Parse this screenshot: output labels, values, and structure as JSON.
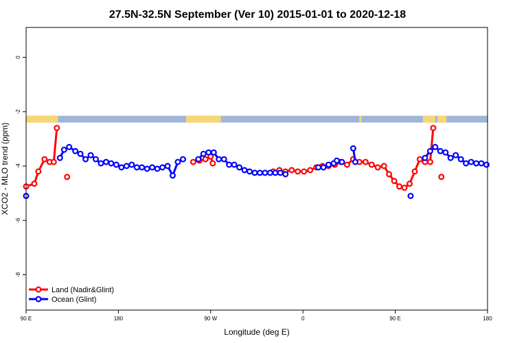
{
  "chart_data": {
    "type": "line",
    "title": "27.5N-32.5N September (Ver 10)   2015-01-01 to 2020-12-18",
    "xlabel": "Longitude (deg E)",
    "ylabel": "XCO2 - MLO trend (ppm)",
    "x_ticks": [
      {
        "value": 90,
        "label": "90 E"
      },
      {
        "value": 180,
        "label": "180"
      },
      {
        "value": 270,
        "label": "90 W"
      },
      {
        "value": 360,
        "label": "0"
      },
      {
        "value": 450,
        "label": "90 E"
      },
      {
        "value": 540,
        "label": "180"
      }
    ],
    "y_ticks": [
      0,
      -2,
      -4,
      -6,
      -8
    ],
    "xlim": [
      90,
      540
    ],
    "ylim": [
      -9.3,
      1.1
    ],
    "legend_position": "bottom-left",
    "land_mask": {
      "y_range": [
        -2.4,
        -2.15
      ],
      "ocean_color": "#9fb6d9",
      "land_color": "#f7d774",
      "land_ranges": [
        [
          90,
          121
        ],
        [
          246,
          280
        ],
        [
          415,
          417
        ],
        [
          477,
          489
        ],
        [
          491,
          500
        ]
      ]
    },
    "series": [
      {
        "name": "Land (Nadir&Glint)",
        "color": "#ff0000",
        "segments": [
          [
            [
              90,
              -4.75
            ],
            [
              98,
              -4.65
            ],
            [
              102,
              -4.2
            ],
            [
              108,
              -3.75
            ],
            [
              113,
              -3.85
            ],
            [
              117,
              -3.85
            ],
            [
              120,
              -2.6
            ]
          ],
          [
            [
              130,
              -4.4
            ]
          ],
          [
            [
              253,
              -3.85
            ],
            [
              259,
              -3.8
            ],
            [
              265,
              -3.75
            ],
            [
              270,
              -3.65
            ],
            [
              272,
              -3.9
            ]
          ],
          [
            [
              331,
              -4.2
            ],
            [
              337,
              -4.15
            ],
            [
              343,
              -4.2
            ],
            [
              349,
              -4.15
            ],
            [
              355,
              -4.2
            ],
            [
              361,
              -4.2
            ],
            [
              367,
              -4.15
            ],
            [
              373,
              -4.05
            ],
            [
              379,
              -4.0
            ],
            [
              385,
              -4.0
            ],
            [
              391,
              -3.95
            ],
            [
              397,
              -3.85
            ],
            [
              403,
              -3.95
            ],
            [
              409,
              -3.75
            ],
            [
              415,
              -3.85
            ],
            [
              421,
              -3.85
            ],
            [
              427,
              -3.95
            ],
            [
              433,
              -4.05
            ],
            [
              439,
              -4.0
            ],
            [
              444,
              -4.3
            ],
            [
              449,
              -4.55
            ],
            [
              454,
              -4.75
            ],
            [
              459,
              -4.8
            ],
            [
              464,
              -4.65
            ],
            [
              469,
              -4.2
            ],
            [
              474,
              -3.75
            ],
            [
              479,
              -3.85
            ],
            [
              484,
              -3.85
            ],
            [
              487,
              -2.6
            ]
          ],
          [
            [
              495,
              -4.4
            ]
          ]
        ]
      },
      {
        "name": "Ocean (Glint)",
        "color": "#0000ff",
        "segments": [
          [
            [
              90,
              -5.1
            ]
          ],
          [
            [
              123,
              -3.7
            ],
            [
              127,
              -3.4
            ],
            [
              132,
              -3.3
            ],
            [
              138,
              -3.45
            ],
            [
              143,
              -3.55
            ],
            [
              148,
              -3.75
            ],
            [
              153,
              -3.6
            ],
            [
              158,
              -3.75
            ],
            [
              163,
              -3.9
            ],
            [
              168,
              -3.85
            ],
            [
              173,
              -3.9
            ],
            [
              178,
              -3.95
            ],
            [
              183,
              -4.05
            ],
            [
              188,
              -4.0
            ],
            [
              193,
              -3.95
            ],
            [
              198,
              -4.05
            ],
            [
              203,
              -4.05
            ],
            [
              208,
              -4.1
            ],
            [
              213,
              -4.05
            ],
            [
              218,
              -4.1
            ],
            [
              223,
              -4.05
            ],
            [
              228,
              -4.0
            ],
            [
              233,
              -4.35
            ],
            [
              238,
              -3.85
            ],
            [
              243,
              -3.75
            ]
          ],
          [
            [
              258,
              -3.75
            ],
            [
              263,
              -3.55
            ],
            [
              268,
              -3.5
            ],
            [
              273,
              -3.5
            ],
            [
              278,
              -3.75
            ],
            [
              283,
              -3.75
            ],
            [
              288,
              -3.95
            ],
            [
              293,
              -3.95
            ],
            [
              298,
              -4.05
            ],
            [
              303,
              -4.15
            ],
            [
              308,
              -4.2
            ],
            [
              313,
              -4.25
            ],
            [
              318,
              -4.25
            ],
            [
              323,
              -4.25
            ],
            [
              328,
              -4.25
            ],
            [
              333,
              -4.25
            ],
            [
              338,
              -4.25
            ],
            [
              343,
              -4.3
            ]
          ],
          [
            [
              375,
              -4.05
            ],
            [
              380,
              -4.05
            ],
            [
              385,
              -3.95
            ],
            [
              390,
              -3.9
            ],
            [
              393,
              -3.8
            ],
            [
              398,
              -3.85
            ]
          ],
          [
            [
              409,
              -3.35
            ],
            [
              411,
              -3.85
            ]
          ],
          [
            [
              465,
              -5.1
            ]
          ],
          [
            [
              479,
              -3.7
            ],
            [
              484,
              -3.45
            ],
            [
              489,
              -3.3
            ],
            [
              494,
              -3.45
            ],
            [
              499,
              -3.5
            ],
            [
              504,
              -3.7
            ],
            [
              509,
              -3.6
            ],
            [
              514,
              -3.75
            ],
            [
              519,
              -3.9
            ],
            [
              524,
              -3.85
            ],
            [
              529,
              -3.9
            ],
            [
              534,
              -3.9
            ],
            [
              539,
              -3.95
            ]
          ]
        ]
      }
    ]
  }
}
